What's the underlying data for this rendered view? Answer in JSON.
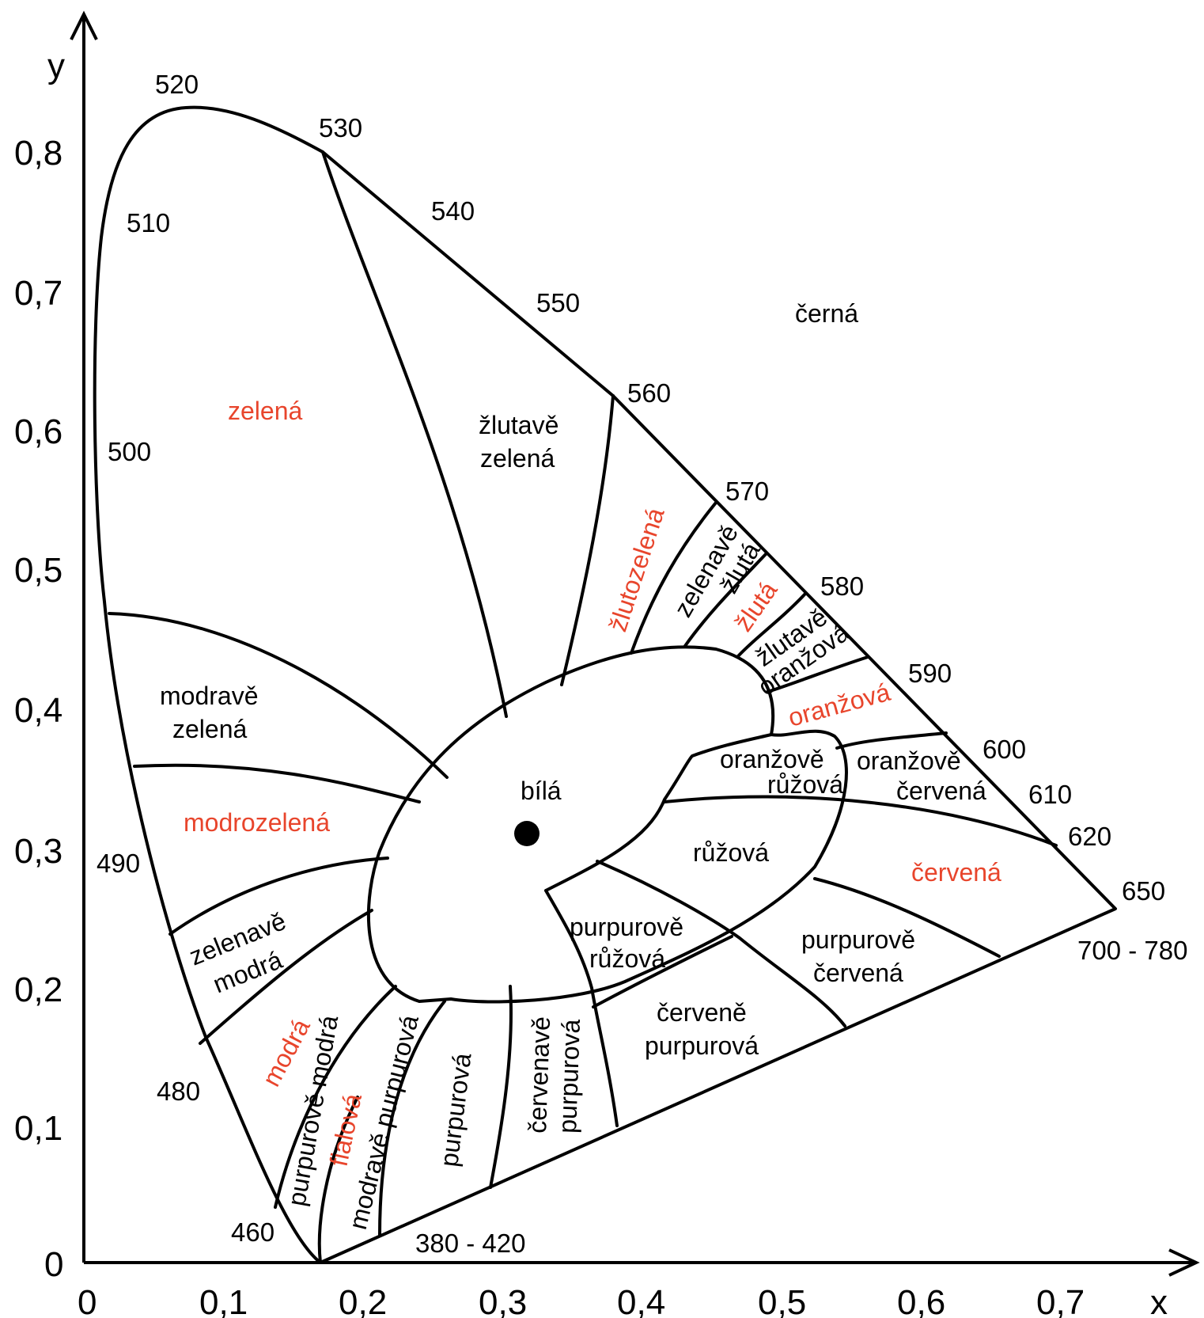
{
  "diagram": {
    "axes": {
      "x_label": "x",
      "y_label": "y",
      "x_ticks": [
        "0",
        "0,1",
        "0,2",
        "0,3",
        "0,4",
        "0,5",
        "0,6",
        "0,7"
      ],
      "y_ticks": [
        "0",
        "0,1",
        "0,2",
        "0,3",
        "0,4",
        "0,5",
        "0,6",
        "0,7",
        "0,8"
      ]
    },
    "wavelengths": {
      "w520": "520",
      "w530": "530",
      "w510": "510",
      "w540": "540",
      "w550": "550",
      "w560": "560",
      "w500": "500",
      "w570": "570",
      "w580": "580",
      "w590": "590",
      "w600": "600",
      "w610": "610",
      "w620": "620",
      "w650": "650",
      "w700": "700 - 780",
      "w490": "490",
      "w480": "480",
      "w460": "460",
      "w380": "380 - 420"
    },
    "regions": {
      "cerna": "černá",
      "zelena": "zelená",
      "zlutave_zelena_1": "žlutavě",
      "zlutave_zelena_2": "zelená",
      "zlutozelena": "žlutozelená",
      "zelenave_zluta_1": "zelenavě",
      "zelenave_zluta_2": "žlutá",
      "zluta": "žlutá",
      "zlutave_oranzova_1": "žlutavě",
      "zlutave_oranzova_2": "oranžová",
      "oranzova": "oranžová",
      "modrave_zelena_1": "modravě",
      "modrave_zelena_2": "zelená",
      "bila": "bílá",
      "oranzove_ruzova_1": "oranžově",
      "oranzove_ruzova_2": "růžová",
      "oranzove_cervena_1": "oranžově",
      "oranzove_cervena_2": "červená",
      "modrozelena": "modrozelená",
      "ruzova": "růžová",
      "cervena": "červená",
      "zelenave_modra_1": "zelenavě",
      "zelenave_modra_2": "modrá",
      "purpurove_ruzova_1": "purpurově",
      "purpurove_ruzova_2": "růžová",
      "purpurove_cervena_1": "purpurově",
      "purpurove_cervena_2": "červená",
      "cervene_purpurova_1": "červeně",
      "cervene_purpurova_2": "purpurová",
      "modra": "modrá",
      "purpurove_modra": "purpurově modrá",
      "fialova": "fialová",
      "modrave_purpurova": "modravě purpurová",
      "purpurova": "purpurová",
      "cervenave_purpurova_1": "červenavě",
      "cervenave_purpurova_2": "purpurová"
    },
    "colors": {
      "line": "#000000",
      "accent": "#e8452c",
      "background": "#ffffff"
    }
  }
}
